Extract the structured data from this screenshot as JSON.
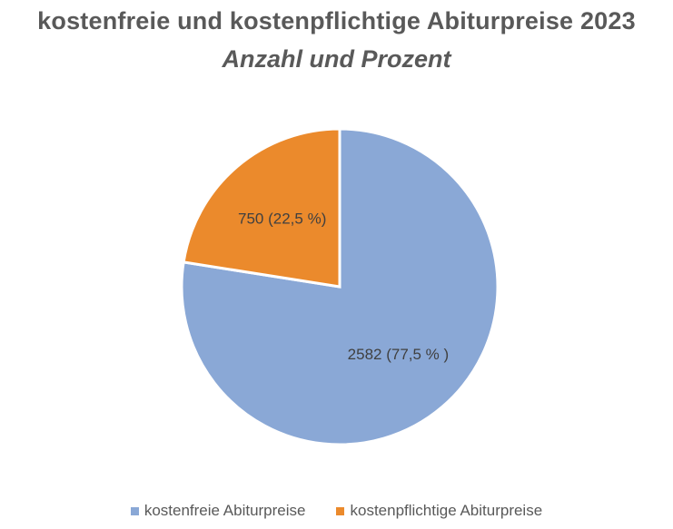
{
  "chart_data": {
    "type": "pie",
    "title": "kostenfreie und kostenpflichtige Abiturpreise 2023",
    "subtitle": "Anzahl und Prozent",
    "categories": [
      "kostenfreie Abiturpreise",
      "kostenpflichtige Abiturpreise"
    ],
    "values": [
      2582,
      750
    ],
    "data_labels": [
      "2582 (77,5 % )",
      "750 (22,5 %)"
    ],
    "colors": [
      "#8AA8D6",
      "#EB8A2C"
    ],
    "legend_position": "bottom"
  }
}
